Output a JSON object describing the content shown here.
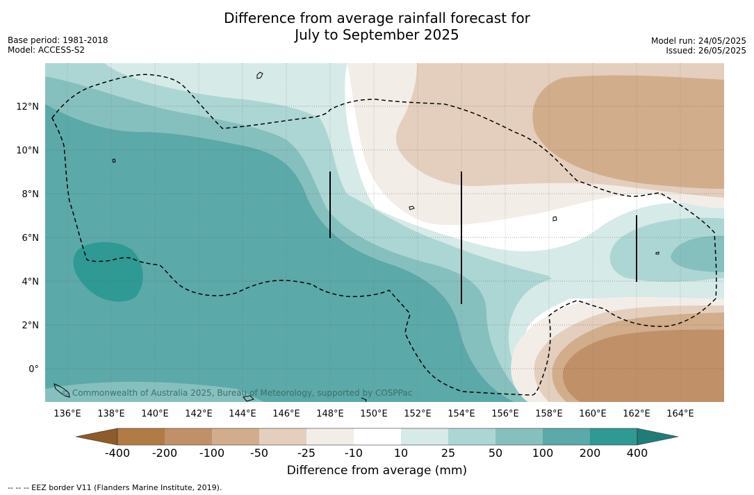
{
  "title": {
    "line1": "Difference from average rainfall forecast for",
    "line2": "July to September 2025"
  },
  "meta_left": {
    "base_period": "Base period: 1981-2018",
    "model": "Model: ACCESS-S2"
  },
  "meta_right": {
    "model_run": "Model run: 24/05/2025",
    "issued": "Issued: 26/05/2025"
  },
  "map": {
    "lat_labels": [
      "12°N",
      "10°N",
      "8°N",
      "6°N",
      "4°N",
      "2°N",
      "0°"
    ],
    "lon_labels": [
      "136°E",
      "138°E",
      "140°E",
      "142°E",
      "144°E",
      "146°E",
      "148°E",
      "150°E",
      "152°E",
      "154°E",
      "156°E",
      "158°E",
      "160°E",
      "162°E",
      "164°E"
    ],
    "copyright": "© Commonwealth of Australia 2025, Bureau of Meteorology, supported by COSPPac"
  },
  "colorbar": {
    "ticks": [
      "-400",
      "-200",
      "-100",
      "-50",
      "-25",
      "-10",
      "10",
      "25",
      "50",
      "100",
      "200",
      "400"
    ],
    "colors": {
      "below_-400": "#8d5c2a",
      "-400_-200": "#b27b45",
      "-200_-100": "#c09068",
      "-100_-50": "#d2ad8c",
      "-50_-25": "#e4cfbe",
      "-25_-10": "#f3ede8",
      "-10_10": "#ffffff",
      "10_25": "#d6eae8",
      "25_50": "#acd6d4",
      "50_100": "#86c0be",
      "100_200": "#5ba9a8",
      "200_400": "#2f9994",
      "above_400": "#1f7d78"
    },
    "label": "Difference from average (mm)"
  },
  "footnote": "--  --  -- EEZ border V11 (Flanders Marine Institute, 2019)."
}
